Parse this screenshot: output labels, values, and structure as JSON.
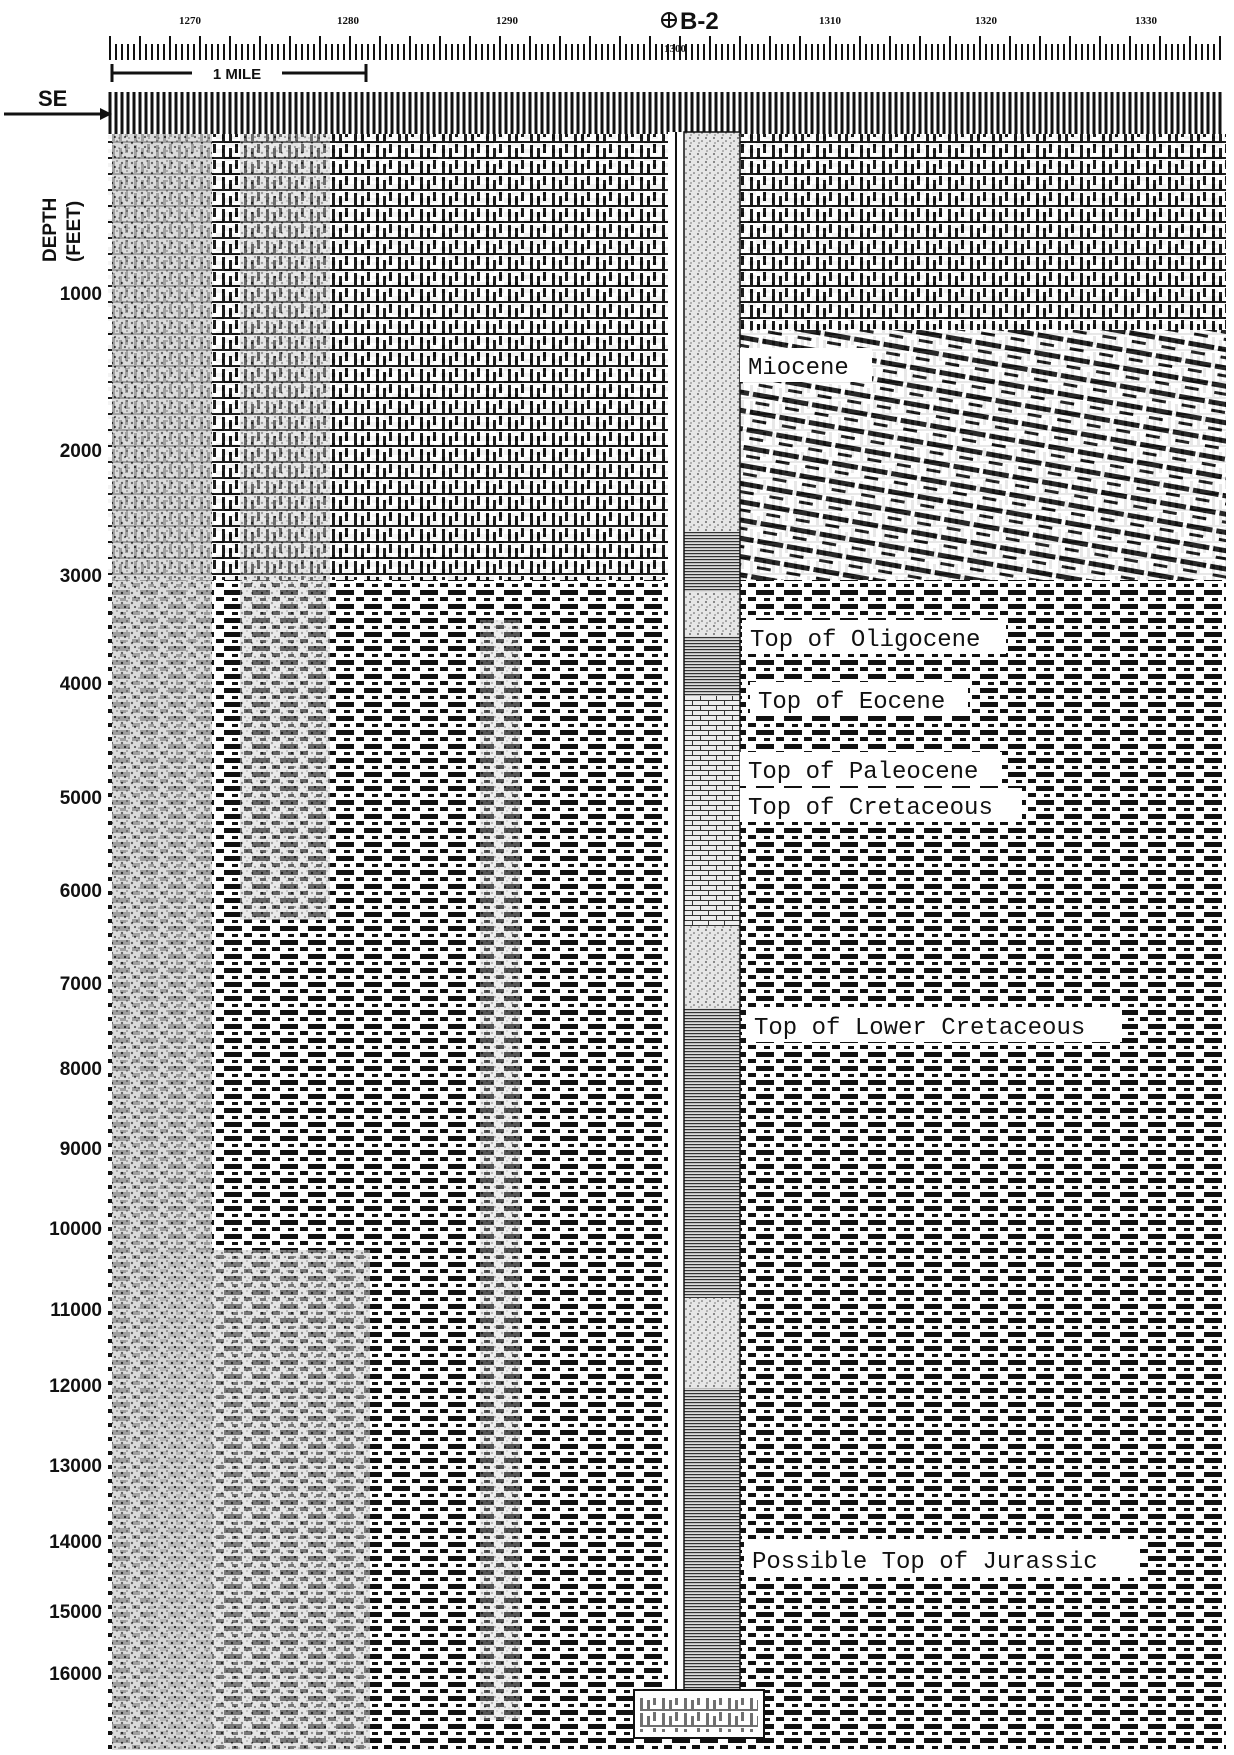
{
  "direction_label": "SE",
  "depth_axis_title_line1": "DEPTH",
  "depth_axis_title_line2": "(FEET)",
  "depth_ticks": [
    "1000",
    "2000",
    "3000",
    "4000",
    "5000",
    "6000",
    "7000",
    "8000",
    "9000",
    "10000",
    "11000",
    "12000",
    "13000",
    "14000",
    "15000",
    "16000"
  ],
  "shotpoint_labels": [
    "1270",
    "1280",
    "1290",
    "1300",
    "1310",
    "1320",
    "1330"
  ],
  "scale_bar_label": "1 MILE",
  "well_label": "B-2",
  "well_symbol": "well-symbol-icon",
  "horizons": [
    {
      "label": "Miocene"
    },
    {
      "label": "Top of Oligocene"
    },
    {
      "label": "Top of Eocene"
    },
    {
      "label": "Top of Paleocene"
    },
    {
      "label": "Top of Cretaceous"
    },
    {
      "label": "Top of Lower Cretaceous"
    },
    {
      "label": "Possible Top of Jurassic"
    }
  ],
  "colors": {
    "ink": "#111111",
    "paper": "#ffffff"
  }
}
